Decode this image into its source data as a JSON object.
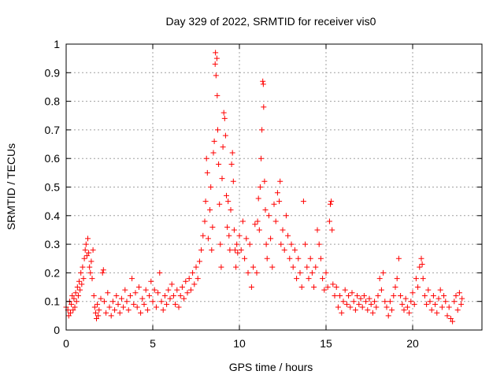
{
  "chart_data": {
    "type": "scatter",
    "title": "Day 329 of 2022, SRMTID for receiver vis0",
    "xlabel": "GPS time / hours",
    "ylabel": "SRMTID / TECUs",
    "xlim": [
      0,
      24
    ],
    "ylim": [
      0,
      1
    ],
    "x_ticks": [
      "0",
      "5",
      "10",
      "15",
      "20"
    ],
    "x_tick_values": [
      0,
      5,
      10,
      15,
      20
    ],
    "y_ticks": [
      "0",
      "0.1",
      "0.2",
      "0.3",
      "0.4",
      "0.5",
      "0.6",
      "0.7",
      "0.8",
      "0.9",
      "1"
    ],
    "y_tick_values": [
      0,
      0.1,
      0.2,
      0.3,
      0.4,
      0.5,
      0.6,
      0.7,
      0.8,
      0.9,
      1
    ],
    "grid": true,
    "marker": "+",
    "color": "#ff0000",
    "series": [
      {
        "name": "SRMTID",
        "points": [
          [
            0.0,
            0.08
          ],
          [
            0.1,
            0.07
          ],
          [
            0.15,
            0.05
          ],
          [
            0.2,
            0.1
          ],
          [
            0.25,
            0.06
          ],
          [
            0.3,
            0.09
          ],
          [
            0.35,
            0.12
          ],
          [
            0.4,
            0.07
          ],
          [
            0.45,
            0.11
          ],
          [
            0.5,
            0.08
          ],
          [
            0.55,
            0.13
          ],
          [
            0.6,
            0.1
          ],
          [
            0.65,
            0.15
          ],
          [
            0.7,
            0.12
          ],
          [
            0.75,
            0.17
          ],
          [
            0.8,
            0.14
          ],
          [
            0.85,
            0.2
          ],
          [
            0.9,
            0.16
          ],
          [
            0.95,
            0.22
          ],
          [
            1.0,
            0.18
          ],
          [
            1.05,
            0.25
          ],
          [
            1.1,
            0.28
          ],
          [
            1.15,
            0.3
          ],
          [
            1.2,
            0.26
          ],
          [
            1.25,
            0.32
          ],
          [
            1.3,
            0.27
          ],
          [
            1.35,
            0.22
          ],
          [
            1.4,
            0.2
          ],
          [
            1.45,
            0.24
          ],
          [
            1.5,
            0.18
          ],
          [
            1.55,
            0.28
          ],
          [
            1.6,
            0.12
          ],
          [
            1.65,
            0.08
          ],
          [
            1.7,
            0.06
          ],
          [
            1.75,
            0.04
          ],
          [
            1.8,
            0.09
          ],
          [
            1.85,
            0.05
          ],
          [
            1.9,
            0.07
          ],
          [
            2.0,
            0.11
          ],
          [
            2.1,
            0.2
          ],
          [
            2.15,
            0.21
          ],
          [
            2.2,
            0.1
          ],
          [
            2.3,
            0.06
          ],
          [
            2.4,
            0.13
          ],
          [
            2.5,
            0.08
          ],
          [
            2.6,
            0.05
          ],
          [
            2.7,
            0.1
          ],
          [
            2.8,
            0.07
          ],
          [
            2.9,
            0.12
          ],
          [
            3.0,
            0.09
          ],
          [
            3.1,
            0.06
          ],
          [
            3.2,
            0.11
          ],
          [
            3.3,
            0.08
          ],
          [
            3.4,
            0.14
          ],
          [
            3.5,
            0.1
          ],
          [
            3.6,
            0.07
          ],
          [
            3.7,
            0.12
          ],
          [
            3.8,
            0.18
          ],
          [
            3.9,
            0.09
          ],
          [
            4.0,
            0.13
          ],
          [
            4.1,
            0.08
          ],
          [
            4.2,
            0.15
          ],
          [
            4.3,
            0.06
          ],
          [
            4.4,
            0.11
          ],
          [
            4.5,
            0.09
          ],
          [
            4.6,
            0.14
          ],
          [
            4.7,
            0.07
          ],
          [
            4.8,
            0.12
          ],
          [
            4.9,
            0.17
          ],
          [
            5.0,
            0.1
          ],
          [
            5.1,
            0.14
          ],
          [
            5.2,
            0.08
          ],
          [
            5.3,
            0.13
          ],
          [
            5.4,
            0.2
          ],
          [
            5.5,
            0.1
          ],
          [
            5.6,
            0.07
          ],
          [
            5.7,
            0.12
          ],
          [
            5.8,
            0.09
          ],
          [
            5.9,
            0.14
          ],
          [
            6.0,
            0.11
          ],
          [
            6.1,
            0.16
          ],
          [
            6.2,
            0.12
          ],
          [
            6.3,
            0.09
          ],
          [
            6.4,
            0.14
          ],
          [
            6.5,
            0.08
          ],
          [
            6.6,
            0.12
          ],
          [
            6.7,
            0.15
          ],
          [
            6.8,
            0.11
          ],
          [
            6.9,
            0.17
          ],
          [
            7.0,
            0.13
          ],
          [
            7.1,
            0.18
          ],
          [
            7.2,
            0.14
          ],
          [
            7.3,
            0.2
          ],
          [
            7.4,
            0.16
          ],
          [
            7.5,
            0.22
          ],
          [
            7.6,
            0.18
          ],
          [
            7.7,
            0.24
          ],
          [
            7.8,
            0.28
          ],
          [
            7.9,
            0.33
          ],
          [
            8.0,
            0.38
          ],
          [
            8.05,
            0.45
          ],
          [
            8.1,
            0.6
          ],
          [
            8.15,
            0.55
          ],
          [
            8.2,
            0.32
          ],
          [
            8.3,
            0.42
          ],
          [
            8.35,
            0.5
          ],
          [
            8.4,
            0.28
          ],
          [
            8.45,
            0.36
          ],
          [
            8.5,
            0.62
          ],
          [
            8.55,
            0.66
          ],
          [
            8.6,
            0.93
          ],
          [
            8.62,
            0.97
          ],
          [
            8.65,
            0.89
          ],
          [
            8.7,
            0.95
          ],
          [
            8.72,
            0.82
          ],
          [
            8.75,
            0.7
          ],
          [
            8.8,
            0.58
          ],
          [
            8.85,
            0.44
          ],
          [
            8.9,
            0.3
          ],
          [
            8.95,
            0.22
          ],
          [
            9.0,
            0.53
          ],
          [
            9.05,
            0.64
          ],
          [
            9.1,
            0.76
          ],
          [
            9.15,
            0.74
          ],
          [
            9.2,
            0.68
          ],
          [
            9.25,
            0.47
          ],
          [
            9.3,
            0.36
          ],
          [
            9.35,
            0.45
          ],
          [
            9.4,
            0.33
          ],
          [
            9.45,
            0.28
          ],
          [
            9.5,
            0.42
          ],
          [
            9.55,
            0.58
          ],
          [
            9.6,
            0.62
          ],
          [
            9.65,
            0.52
          ],
          [
            9.7,
            0.35
          ],
          [
            9.75,
            0.28
          ],
          [
            9.8,
            0.22
          ],
          [
            9.85,
            0.3
          ],
          [
            9.9,
            0.27
          ],
          [
            10.0,
            0.33
          ],
          [
            10.1,
            0.28
          ],
          [
            10.2,
            0.38
          ],
          [
            10.3,
            0.25
          ],
          [
            10.4,
            0.32
          ],
          [
            10.5,
            0.2
          ],
          [
            10.6,
            0.3
          ],
          [
            10.7,
            0.15
          ],
          [
            10.8,
            0.22
          ],
          [
            10.9,
            0.37
          ],
          [
            11.0,
            0.2
          ],
          [
            11.05,
            0.38
          ],
          [
            11.1,
            0.46
          ],
          [
            11.15,
            0.35
          ],
          [
            11.2,
            0.5
          ],
          [
            11.25,
            0.6
          ],
          [
            11.3,
            0.7
          ],
          [
            11.35,
            0.87
          ],
          [
            11.38,
            0.86
          ],
          [
            11.4,
            0.78
          ],
          [
            11.45,
            0.52
          ],
          [
            11.5,
            0.42
          ],
          [
            11.55,
            0.3
          ],
          [
            11.6,
            0.25
          ],
          [
            11.7,
            0.4
          ],
          [
            11.8,
            0.32
          ],
          [
            11.9,
            0.22
          ],
          [
            12.0,
            0.44
          ],
          [
            12.1,
            0.38
          ],
          [
            12.2,
            0.48
          ],
          [
            12.3,
            0.45
          ],
          [
            12.35,
            0.52
          ],
          [
            12.4,
            0.3
          ],
          [
            12.5,
            0.35
          ],
          [
            12.6,
            0.28
          ],
          [
            12.7,
            0.4
          ],
          [
            12.8,
            0.33
          ],
          [
            12.9,
            0.25
          ],
          [
            13.0,
            0.3
          ],
          [
            13.1,
            0.22
          ],
          [
            13.2,
            0.28
          ],
          [
            13.3,
            0.18
          ],
          [
            13.4,
            0.25
          ],
          [
            13.5,
            0.2
          ],
          [
            13.6,
            0.15
          ],
          [
            13.7,
            0.45
          ],
          [
            13.8,
            0.3
          ],
          [
            13.9,
            0.22
          ],
          [
            14.0,
            0.18
          ],
          [
            14.1,
            0.25
          ],
          [
            14.2,
            0.2
          ],
          [
            14.3,
            0.15
          ],
          [
            14.4,
            0.22
          ],
          [
            14.5,
            0.35
          ],
          [
            14.6,
            0.3
          ],
          [
            14.7,
            0.25
          ],
          [
            14.8,
            0.18
          ],
          [
            14.9,
            0.14
          ],
          [
            15.0,
            0.2
          ],
          [
            15.1,
            0.15
          ],
          [
            15.2,
            0.38
          ],
          [
            15.25,
            0.44
          ],
          [
            15.3,
            0.45
          ],
          [
            15.35,
            0.35
          ],
          [
            15.4,
            0.16
          ],
          [
            15.5,
            0.12
          ],
          [
            15.6,
            0.15
          ],
          [
            15.7,
            0.08
          ],
          [
            15.8,
            0.12
          ],
          [
            15.9,
            0.06
          ],
          [
            16.0,
            0.1
          ],
          [
            16.1,
            0.14
          ],
          [
            16.2,
            0.09
          ],
          [
            16.3,
            0.12
          ],
          [
            16.4,
            0.08
          ],
          [
            16.5,
            0.13
          ],
          [
            16.6,
            0.1
          ],
          [
            16.7,
            0.07
          ],
          [
            16.8,
            0.12
          ],
          [
            16.9,
            0.09
          ],
          [
            17.0,
            0.11
          ],
          [
            17.1,
            0.08
          ],
          [
            17.2,
            0.12
          ],
          [
            17.3,
            0.1
          ],
          [
            17.4,
            0.07
          ],
          [
            17.5,
            0.11
          ],
          [
            17.6,
            0.09
          ],
          [
            17.7,
            0.06
          ],
          [
            17.8,
            0.1
          ],
          [
            17.9,
            0.08
          ],
          [
            18.0,
            0.12
          ],
          [
            18.1,
            0.18
          ],
          [
            18.2,
            0.14
          ],
          [
            18.3,
            0.2
          ],
          [
            18.4,
            0.1
          ],
          [
            18.5,
            0.08
          ],
          [
            18.6,
            0.05
          ],
          [
            18.7,
            0.1
          ],
          [
            18.8,
            0.07
          ],
          [
            18.9,
            0.12
          ],
          [
            19.0,
            0.15
          ],
          [
            19.1,
            0.18
          ],
          [
            19.2,
            0.25
          ],
          [
            19.3,
            0.12
          ],
          [
            19.4,
            0.09
          ],
          [
            19.5,
            0.07
          ],
          [
            19.6,
            0.11
          ],
          [
            19.7,
            0.08
          ],
          [
            19.8,
            0.06
          ],
          [
            19.9,
            0.1
          ],
          [
            20.0,
            0.13
          ],
          [
            20.1,
            0.09
          ],
          [
            20.2,
            0.18
          ],
          [
            20.3,
            0.15
          ],
          [
            20.4,
            0.22
          ],
          [
            20.5,
            0.25
          ],
          [
            20.55,
            0.23
          ],
          [
            20.6,
            0.18
          ],
          [
            20.7,
            0.12
          ],
          [
            20.8,
            0.09
          ],
          [
            20.9,
            0.14
          ],
          [
            21.0,
            0.1
          ],
          [
            21.1,
            0.07
          ],
          [
            21.2,
            0.12
          ],
          [
            21.3,
            0.09
          ],
          [
            21.4,
            0.06
          ],
          [
            21.5,
            0.11
          ],
          [
            21.6,
            0.14
          ],
          [
            21.7,
            0.08
          ],
          [
            21.8,
            0.12
          ],
          [
            21.9,
            0.1
          ],
          [
            22.0,
            0.05
          ],
          [
            22.1,
            0.08
          ],
          [
            22.2,
            0.04
          ],
          [
            22.3,
            0.03
          ],
          [
            22.4,
            0.1
          ],
          [
            22.5,
            0.12
          ],
          [
            22.6,
            0.07
          ],
          [
            22.7,
            0.13
          ],
          [
            22.8,
            0.09
          ],
          [
            22.85,
            0.11
          ]
        ]
      }
    ]
  }
}
